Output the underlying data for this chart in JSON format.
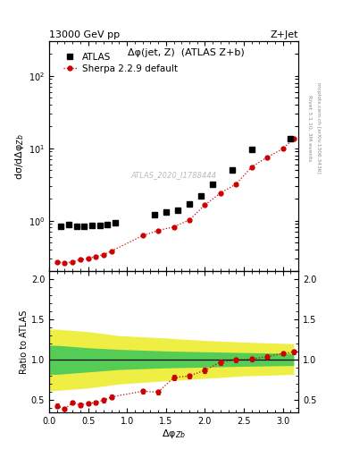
{
  "title_left": "13000 GeV pp",
  "title_right": "Z+Jet",
  "right_label_top": "Rivet 3.1.10, 3M events",
  "right_label_bot": "mcplots.cern.ch [arXiv:1306.3436]",
  "watermark": "ATLAS_2020_I1788444",
  "main_title": "Δφ(jet, Z)  (ATLAS Z+b)",
  "ylabel_main": "dσ/dΔφ$_{Zb}$",
  "ylabel_ratio": "Ratio to ATLAS",
  "xlabel": "Δφ$_{Zb}$",
  "atlas_label": "ATLAS",
  "sherpa_label": "Sherpa 2.2.9 default",
  "atlas_x": [
    0.15,
    0.25,
    0.35,
    0.45,
    0.55,
    0.65,
    0.75,
    0.85,
    1.35,
    1.5,
    1.65,
    1.8,
    1.95,
    2.1,
    2.35,
    2.6,
    3.1
  ],
  "atlas_y": [
    0.83,
    0.88,
    0.84,
    0.84,
    0.85,
    0.87,
    0.88,
    0.93,
    1.22,
    1.3,
    1.4,
    1.7,
    2.2,
    3.2,
    5.0,
    9.5,
    13.5
  ],
  "sherpa_x": [
    0.1,
    0.2,
    0.3,
    0.4,
    0.5,
    0.6,
    0.7,
    0.8,
    1.2,
    1.4,
    1.6,
    1.8,
    2.0,
    2.2,
    2.4,
    2.6,
    2.8,
    3.0,
    3.14
  ],
  "sherpa_y": [
    0.27,
    0.26,
    0.27,
    0.29,
    0.3,
    0.32,
    0.34,
    0.38,
    0.62,
    0.73,
    0.82,
    1.02,
    1.65,
    2.4,
    3.2,
    5.5,
    7.5,
    9.8,
    13.5
  ],
  "ratio_x": [
    0.1,
    0.2,
    0.3,
    0.4,
    0.5,
    0.6,
    0.7,
    0.8,
    1.2,
    1.4,
    1.6,
    1.8,
    2.0,
    2.2,
    2.4,
    2.6,
    2.8,
    3.0,
    3.14
  ],
  "ratio_y": [
    0.43,
    0.39,
    0.47,
    0.44,
    0.46,
    0.47,
    0.5,
    0.54,
    0.61,
    0.6,
    0.78,
    0.8,
    0.87,
    0.97,
    1.0,
    1.01,
    1.04,
    1.08,
    1.1
  ],
  "ratio_yerr": [
    0.03,
    0.025,
    0.025,
    0.025,
    0.025,
    0.025,
    0.025,
    0.025,
    0.03,
    0.03,
    0.03,
    0.03,
    0.03,
    0.03,
    0.03,
    0.025,
    0.025,
    0.025,
    0.025
  ],
  "yellow_band_x": [
    0.0,
    0.1,
    0.5,
    0.9,
    1.5,
    2.0,
    2.5,
    3.14
  ],
  "yellow_band_ylow": [
    0.62,
    0.62,
    0.65,
    0.7,
    0.74,
    0.77,
    0.8,
    0.82
  ],
  "yellow_band_yhigh": [
    1.38,
    1.38,
    1.35,
    1.3,
    1.27,
    1.24,
    1.22,
    1.2
  ],
  "green_band_x": [
    0.0,
    0.1,
    0.5,
    0.9,
    1.5,
    2.0,
    2.5,
    3.14
  ],
  "green_band_ylow": [
    0.82,
    0.82,
    0.85,
    0.88,
    0.9,
    0.91,
    0.92,
    0.93
  ],
  "green_band_yhigh": [
    1.18,
    1.18,
    1.15,
    1.13,
    1.11,
    1.1,
    1.09,
    1.08
  ],
  "xlim": [
    0.0,
    3.2
  ],
  "ylim_main": [
    0.2,
    300
  ],
  "ylim_ratio": [
    0.35,
    2.1
  ],
  "atlas_color": "#000000",
  "sherpa_color": "#cc0000",
  "green_color": "#55cc55",
  "yellow_color": "#eeee44",
  "bg_color": "#ffffff"
}
